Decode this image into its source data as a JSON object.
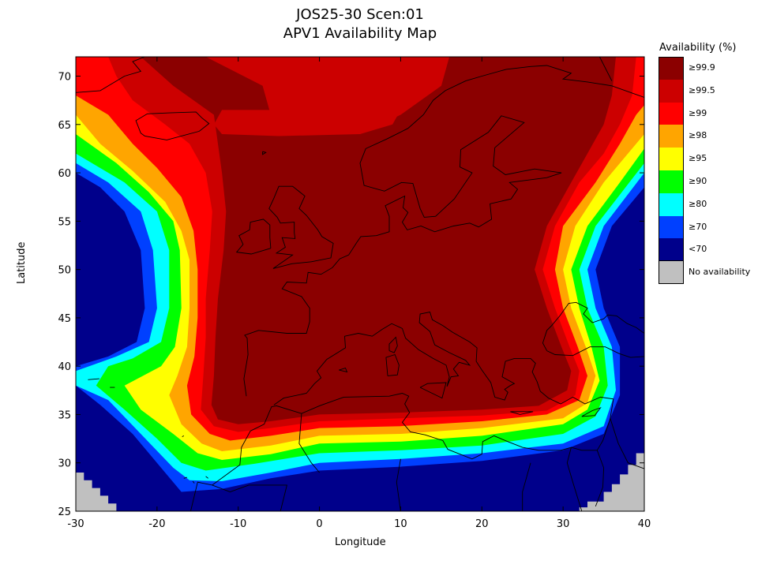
{
  "title": {
    "line1": "JOS25-30 Scen:01",
    "line2": "APV1 Availability Map"
  },
  "axes": {
    "xlabel": "Longitude",
    "ylabel": "Latitude",
    "xlim": [
      -30,
      40
    ],
    "ylim": [
      25,
      72
    ],
    "xticks": [
      -30,
      -20,
      -10,
      0,
      10,
      20,
      30,
      40
    ],
    "yticks": [
      25,
      30,
      35,
      40,
      45,
      50,
      55,
      60,
      65,
      70
    ]
  },
  "legend": {
    "title": "Availability (%)",
    "items": [
      {
        "label": "≥99.9",
        "color": "#8b0000"
      },
      {
        "label": "≥99.5",
        "color": "#cc0000"
      },
      {
        "label": "≥99",
        "color": "#ff0000"
      },
      {
        "label": "≥98",
        "color": "#ffa500"
      },
      {
        "label": "≥95",
        "color": "#ffff00"
      },
      {
        "label": "≥90",
        "color": "#00ff00"
      },
      {
        "label": "≥80",
        "color": "#00ffff"
      },
      {
        "label": "≥70",
        "color": "#0040ff"
      },
      {
        "label": "<70",
        "color": "#00008b"
      },
      {
        "label": "No availability",
        "color": "#c0c0c0"
      }
    ]
  },
  "map_data": {
    "description_levels": [
      "≥99.9",
      "≥99.5",
      "≥99",
      "≥98",
      "≥95",
      "≥90",
      "≥80",
      "≥70",
      "<70"
    ],
    "core_region": {
      "lon_range": [
        -14,
        35
      ],
      "lat_range": [
        32,
        72
      ],
      "level": "≥99.9"
    },
    "no_availability_regions": [
      "south-west corner (lon -30 to -25, lat 25 to 30)",
      "south-east corner (lon 32 to 40, lat 25 to 31)"
    ],
    "coastlines": "Europe, North Africa, Middle East"
  }
}
